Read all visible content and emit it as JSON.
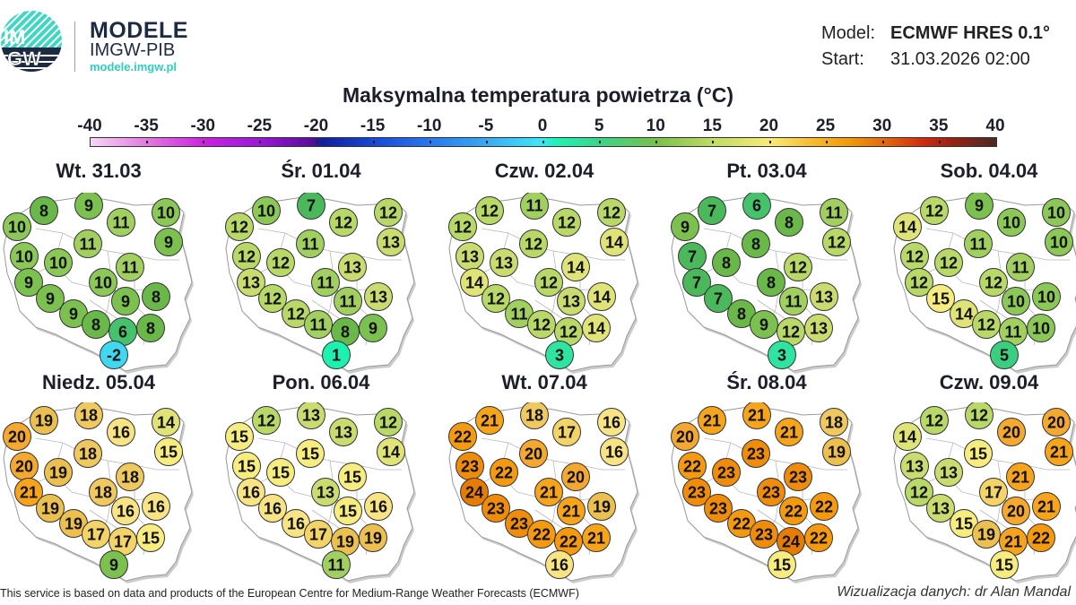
{
  "header": {
    "logo_text": "IMGW",
    "brand_title": "MODELE",
    "brand_subtitle": "IMGW-PIB",
    "brand_url": "modele.imgw.pl",
    "model_label": "Model:",
    "model_value": "ECMWF HRES 0.1°",
    "start_label": "Start:",
    "start_value": "31.03.2026 02:00"
  },
  "title": "Maksymalna temperatura powietrza (°C)",
  "colorbar": {
    "ticks": [
      "-40",
      "-35",
      "-30",
      "-25",
      "-20",
      "-15",
      "-10",
      "-5",
      "0",
      "5",
      "10",
      "15",
      "20",
      "25",
      "30",
      "35",
      "40"
    ],
    "min": -40,
    "max": 40
  },
  "days": [
    {
      "label": "Wt. 31.03",
      "values": [
        8,
        9,
        10,
        11,
        10,
        11,
        9,
        10,
        10,
        11,
        9,
        10,
        9,
        9,
        8,
        9,
        8,
        6,
        8,
        -2
      ]
    },
    {
      "label": "Śr. 01.04",
      "values": [
        10,
        7,
        12,
        12,
        12,
        11,
        13,
        12,
        12,
        13,
        13,
        11,
        12,
        11,
        13,
        12,
        11,
        8,
        9,
        1
      ]
    },
    {
      "label": "Czw. 02.04",
      "values": [
        12,
        11,
        12,
        12,
        12,
        12,
        14,
        13,
        13,
        14,
        14,
        12,
        12,
        13,
        14,
        11,
        12,
        12,
        14,
        3
      ]
    },
    {
      "label": "Pt. 03.04",
      "values": [
        7,
        6,
        11,
        8,
        9,
        8,
        12,
        7,
        8,
        12,
        7,
        8,
        7,
        11,
        13,
        8,
        9,
        12,
        13,
        3
      ]
    },
    {
      "label": "Sob. 04.04",
      "values": [
        12,
        9,
        10,
        10,
        14,
        11,
        10,
        12,
        12,
        11,
        12,
        12,
        15,
        10,
        10,
        14,
        12,
        11,
        10,
        5
      ]
    },
    {
      "label": "Niedz. 05.04",
      "values": [
        19,
        18,
        14,
        16,
        20,
        18,
        15,
        20,
        19,
        18,
        21,
        18,
        19,
        16,
        16,
        19,
        17,
        17,
        15,
        9
      ]
    },
    {
      "label": "Pon. 06.04",
      "values": [
        12,
        13,
        12,
        13,
        15,
        15,
        14,
        15,
        15,
        15,
        16,
        13,
        16,
        15,
        16,
        16,
        17,
        19,
        19,
        11
      ]
    },
    {
      "label": "Wt. 07.04",
      "values": [
        21,
        18,
        16,
        17,
        22,
        20,
        16,
        23,
        22,
        20,
        24,
        21,
        23,
        21,
        19,
        23,
        22,
        22,
        21,
        16
      ]
    },
    {
      "label": "Śr. 08.04",
      "values": [
        21,
        21,
        18,
        21,
        20,
        23,
        19,
        22,
        23,
        23,
        23,
        23,
        23,
        22,
        22,
        22,
        23,
        24,
        22,
        15
      ]
    },
    {
      "label": "Czw. 09.04",
      "values": [
        12,
        12,
        20,
        20,
        14,
        15,
        21,
        13,
        13,
        21,
        12,
        17,
        13,
        20,
        21,
        15,
        19,
        21,
        22,
        15
      ]
    }
  ],
  "footer": {
    "source": "This service is based on data and products of the European Centre for Medium-Range Weather Forecasts (ECMWF)",
    "credit": "Wizualizacja danych: dr Alan Mandal"
  }
}
